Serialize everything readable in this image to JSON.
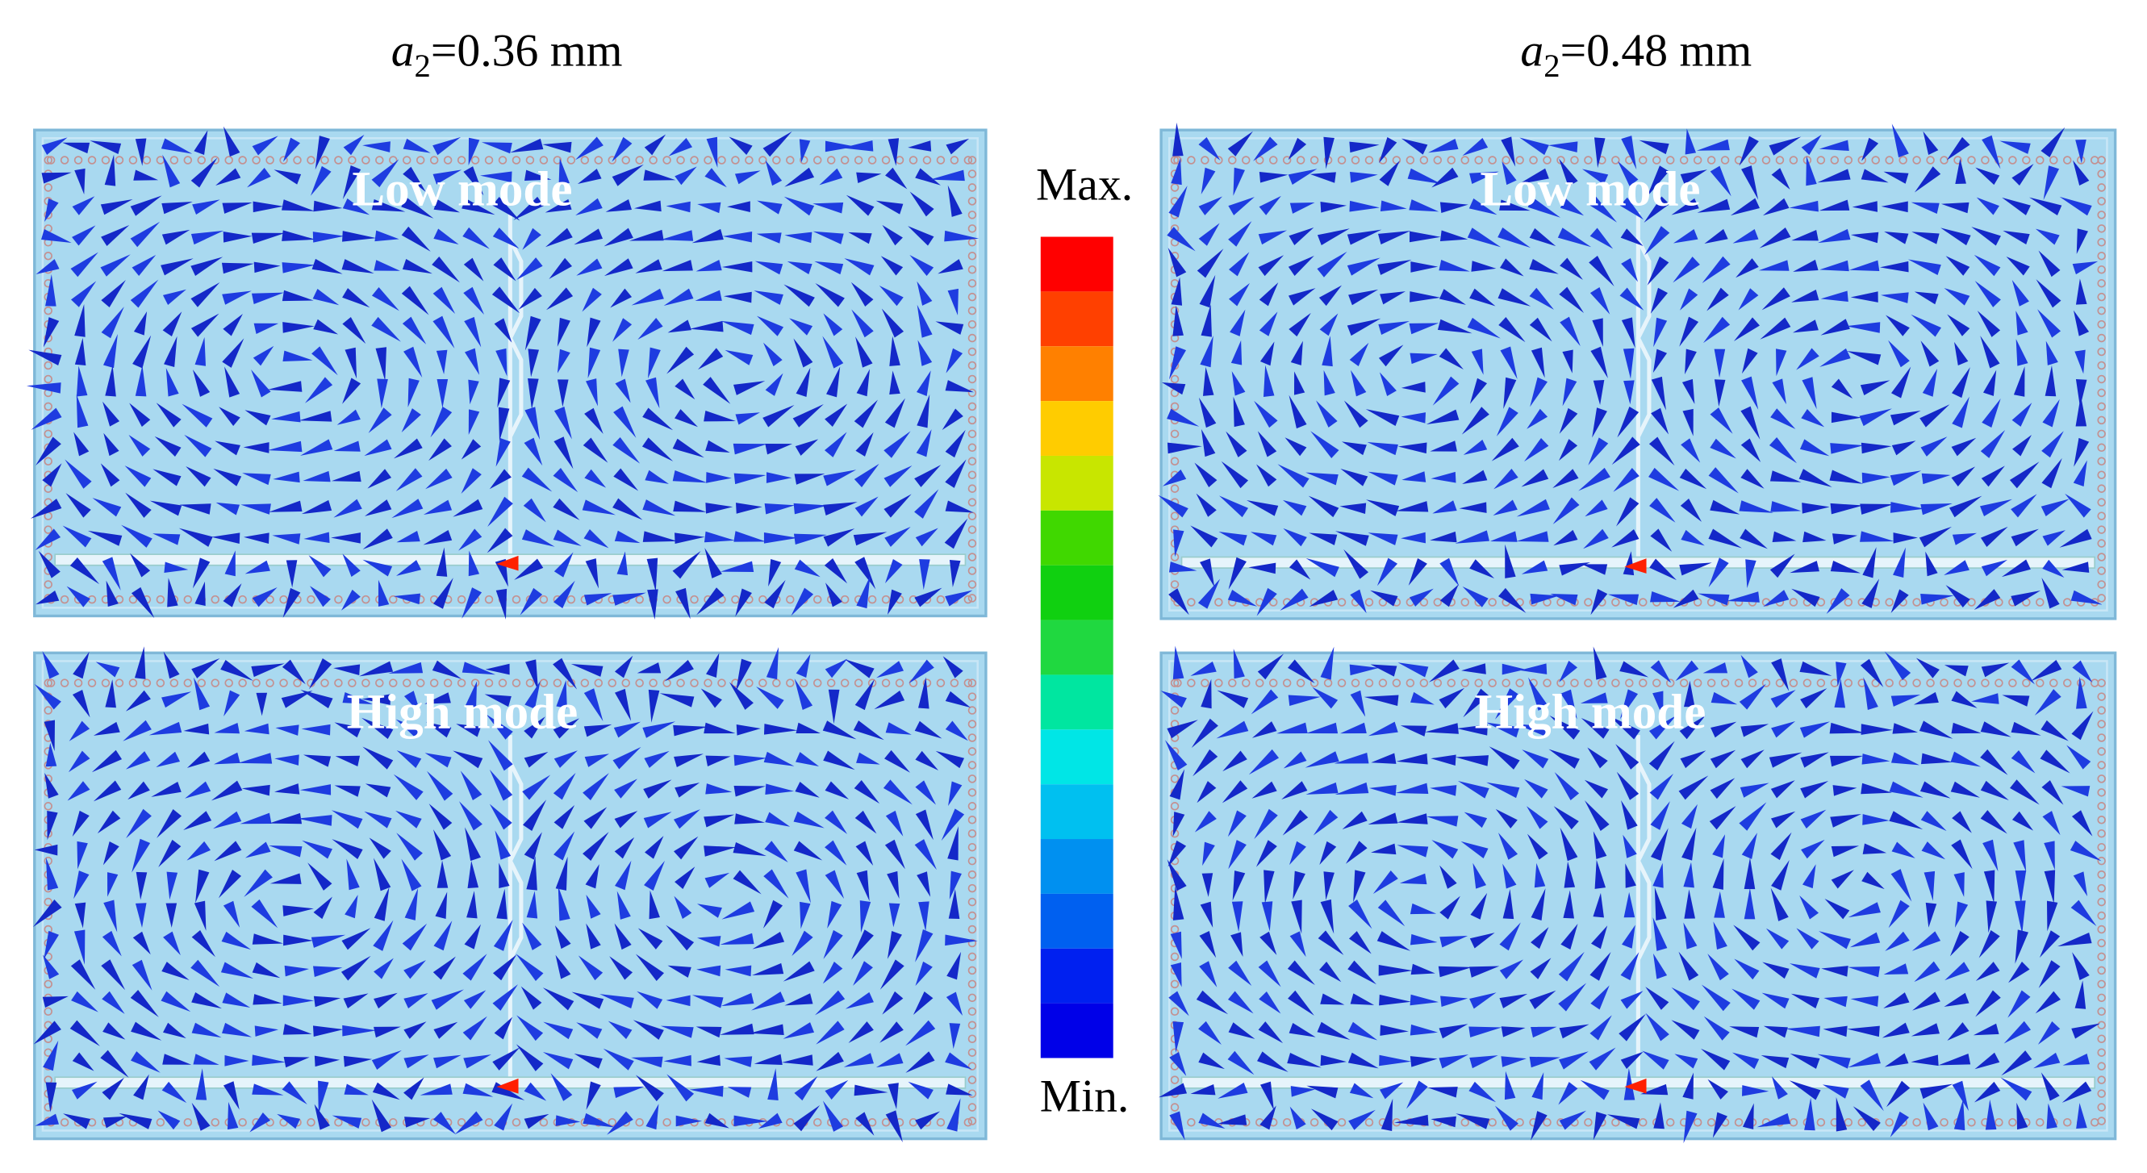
{
  "columns": [
    {
      "title": {
        "variable": "a",
        "subscript": "2",
        "value": "=0.36 mm"
      },
      "panels": [
        {
          "label": "Low mode"
        },
        {
          "label": "High mode"
        }
      ]
    },
    {
      "title": {
        "variable": "a",
        "subscript": "2",
        "value": "=0.48 mm"
      },
      "panels": [
        {
          "label": "Low mode"
        },
        {
          "label": "High mode"
        }
      ]
    }
  ],
  "colorbar": {
    "max_label": "Max.",
    "min_label": "Min."
  }
}
